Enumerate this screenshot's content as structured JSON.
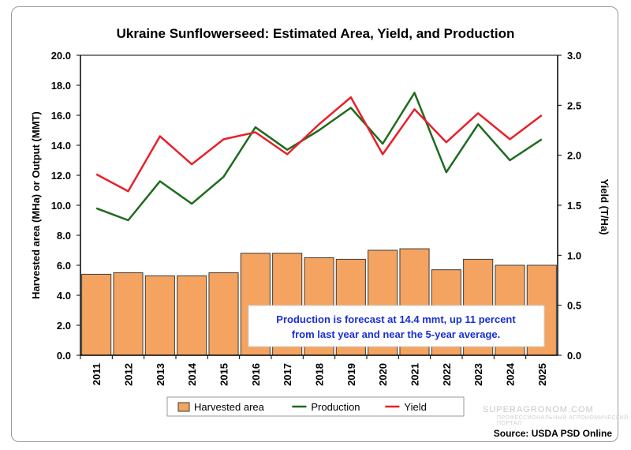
{
  "chart_data": {
    "type": "bar",
    "title": "Ukraine Sunflowerseed: Estimated Area, Yield, and Production",
    "ylabel": "Harvested area (MHa) or Output (MMT)",
    "y2label": "Yield (T/Ha)",
    "ylim": [
      0,
      20
    ],
    "y2lim": [
      0,
      3
    ],
    "yticks": [
      "0.0",
      "2.0",
      "4.0",
      "6.0",
      "8.0",
      "10.0",
      "12.0",
      "14.0",
      "16.0",
      "18.0",
      "20.0"
    ],
    "y2ticks": [
      "0.0",
      "0.5",
      "1.0",
      "1.5",
      "2.0",
      "2.5",
      "3.0"
    ],
    "categories": [
      "2011",
      "2012",
      "2013",
      "2014",
      "2015",
      "2016",
      "2017",
      "2018",
      "2019",
      "2020",
      "2021",
      "2022",
      "2023",
      "2024",
      "2025"
    ],
    "series": [
      {
        "name": "Harvested area",
        "kind": "bar",
        "axis": "left",
        "color": "#F4A460",
        "values": [
          5.4,
          5.5,
          5.3,
          5.3,
          5.5,
          6.8,
          6.8,
          6.5,
          6.4,
          7.0,
          7.1,
          5.7,
          6.4,
          6.0,
          6.0
        ]
      },
      {
        "name": "Production",
        "kind": "line",
        "axis": "left",
        "color": "#1E6B1E",
        "values": [
          9.8,
          9.0,
          11.6,
          10.1,
          11.9,
          15.2,
          13.7,
          15.0,
          16.5,
          14.1,
          17.5,
          12.2,
          15.4,
          13.0,
          14.4
        ]
      },
      {
        "name": "Yield",
        "kind": "line",
        "axis": "right",
        "color": "#E8202A",
        "values": [
          1.81,
          1.64,
          2.19,
          1.91,
          2.16,
          2.23,
          2.01,
          2.31,
          2.58,
          2.01,
          2.46,
          2.13,
          2.42,
          2.16,
          2.4
        ]
      }
    ],
    "annotation": "Production is forecast at 14.4 mmt, up 11 percent from last year and near the 5-year average.",
    "legend_position": "bottom",
    "grid": false
  },
  "source": "Source: USDA PSD Online",
  "watermark": "SUPERAGRONOM.COM",
  "watermark_sub": "ПРОФЕССИОНАЛЬНЫЙ АГРОНОМИЧЕСКИЙ ПОРТАЛ"
}
